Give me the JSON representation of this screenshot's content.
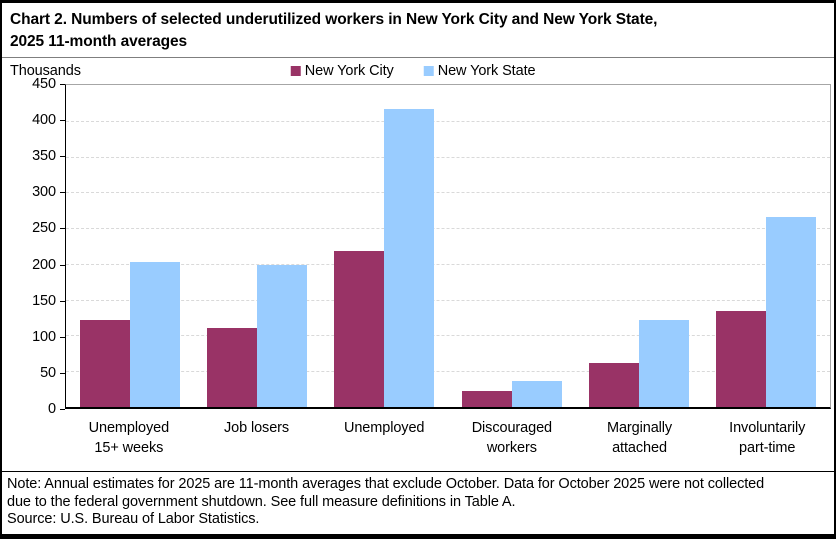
{
  "header": {
    "title_line1": "Chart 2. Numbers of selected underutilized workers in New York City and New York State,",
    "title_line2": "2025 11-month averages",
    "units_label": "Thousands"
  },
  "legend": {
    "items": [
      {
        "label": "New York City",
        "color": "#993366"
      },
      {
        "label": "New York State",
        "color": "#99CCFF"
      }
    ]
  },
  "chart_data": {
    "type": "bar",
    "title": "Chart 2. Numbers of selected underutilized workers in New York City and New York State, 2025 11-month averages",
    "xlabel": "",
    "ylabel": "Thousands",
    "ylim": [
      0,
      450
    ],
    "ytick_step": 50,
    "yticks": [
      450,
      400,
      350,
      300,
      250,
      200,
      150,
      100,
      50,
      0
    ],
    "grid": "horizontal-dashed",
    "legend_position": "top-center",
    "categories": [
      "Unemployed 15+ weeks",
      "Job losers",
      "Unemployed",
      "Discouraged workers",
      "Marginally attached",
      "Involuntarily part-time"
    ],
    "category_label_lines": [
      [
        "Unemployed",
        "15+ weeks"
      ],
      [
        "Job losers"
      ],
      [
        "Unemployed"
      ],
      [
        "Discouraged",
        "workers"
      ],
      [
        "Marginally",
        "attached"
      ],
      [
        "Involuntarily",
        "part-time"
      ]
    ],
    "series": [
      {
        "name": "New York City",
        "color": "#993366",
        "values": [
          121,
          110,
          218,
          23,
          62,
          134
        ]
      },
      {
        "name": "New York State",
        "color": "#99CCFF",
        "values": [
          203,
          199,
          417,
          37,
          122,
          266
        ]
      }
    ]
  },
  "footer": {
    "note_lines": [
      "Note: Annual estimates for 2025 are 11-month averages that exclude October. Data for October 2025 were not collected",
      "due to the federal government shutdown. See full measure definitions in Table A."
    ],
    "source": "Source: U.S. Bureau of Labor Statistics."
  },
  "colors": {
    "bar_nyc": "#993366",
    "bar_nys": "#99CCFF",
    "gridline": "#d9d9d9",
    "plot_border": "#a6a6a6",
    "axis": "#000000"
  }
}
